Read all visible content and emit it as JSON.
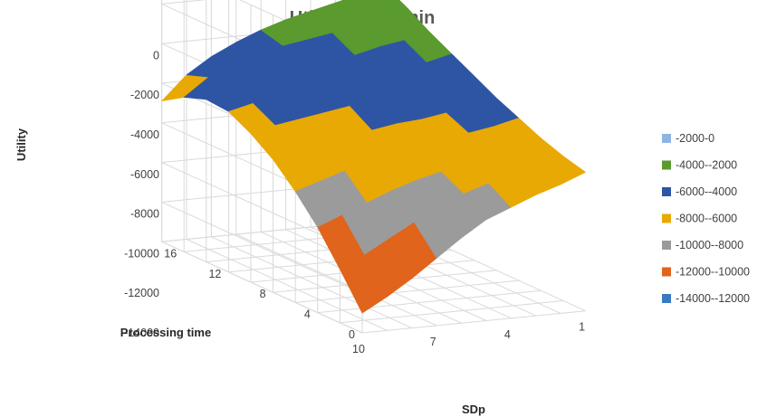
{
  "chart_data": {
    "type": "surface",
    "title": "Utility Tb = 1 min",
    "zlabel": "Utility",
    "xlabel": "Processing time",
    "ylabel": "SDp",
    "z_ticks": [
      "0",
      "-2000",
      "-4000",
      "-6000",
      "-8000",
      "-10000",
      "-12000",
      "-14000"
    ],
    "zlim": [
      -14000,
      0
    ],
    "processing_time_ticks": [
      "0",
      "4",
      "8",
      "12",
      "16"
    ],
    "processing_time_values": [
      0,
      2,
      4,
      6,
      8,
      10,
      12,
      14,
      16,
      18
    ],
    "sdp_ticks": [
      "1",
      "4",
      "7",
      "10"
    ],
    "sdp_values": [
      1,
      2,
      3,
      4,
      5,
      6,
      7,
      8,
      9,
      10
    ],
    "z_values": [
      [
        -7000,
        -7500,
        -7900,
        -8400,
        -8900,
        -9700,
        -10600,
        -11500,
        -12300,
        -13000
      ],
      [
        -6700,
        -7100,
        -7400,
        -7700,
        -8100,
        -8700,
        -9300,
        -10000,
        -10700,
        -11300
      ],
      [
        -6300,
        -6600,
        -6900,
        -7200,
        -7500,
        -7800,
        -8200,
        -8700,
        -9200,
        -9700
      ],
      [
        -5800,
        -6100,
        -6300,
        -6600,
        -6800,
        -7000,
        -7300,
        -7600,
        -8000,
        -8400
      ],
      [
        -5300,
        -5600,
        -5800,
        -6000,
        -6100,
        -6300,
        -6500,
        -6700,
        -7000,
        -7300
      ],
      [
        -4700,
        -5000,
        -5200,
        -5400,
        -5500,
        -5600,
        -5800,
        -6000,
        -6200,
        -6500
      ],
      [
        -4100,
        -4400,
        -4600,
        -4800,
        -4900,
        -5100,
        -5200,
        -5400,
        -5600,
        -5900
      ],
      [
        -3500,
        -3800,
        -4000,
        -4300,
        -4400,
        -4600,
        -4800,
        -5000,
        -5300,
        -5800
      ],
      [
        -2800,
        -3100,
        -3400,
        -3700,
        -3900,
        -4100,
        -4400,
        -4800,
        -5300,
        -6200
      ],
      [
        -2200,
        -2500,
        -2800,
        -3100,
        -3400,
        -3800,
        -4300,
        -4900,
        -5700,
        -6900
      ]
    ],
    "legend": [
      {
        "label": "-2000-0",
        "color": "#8eb4e3"
      },
      {
        "label": "-4000--2000",
        "color": "#5a9a2e"
      },
      {
        "label": "-6000--4000",
        "color": "#2e55a4"
      },
      {
        "label": "-8000--6000",
        "color": "#e8a905"
      },
      {
        "label": "-10000--8000",
        "color": "#9b9b9b"
      },
      {
        "label": "-12000--10000",
        "color": "#e0641b"
      },
      {
        "label": "-14000--12000",
        "color": "#3a78c2"
      }
    ],
    "legend_position": "right",
    "grid": true
  }
}
